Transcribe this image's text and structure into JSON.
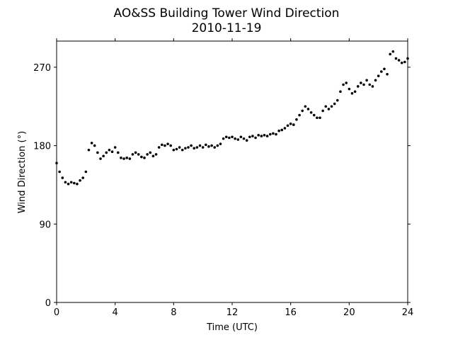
{
  "chart_data": {
    "type": "scatter",
    "title": "AO&SS Building Tower Wind Direction",
    "subtitle": "2010-11-19",
    "x_label": "Time (UTC)",
    "y_label": "Wind Direction (°)",
    "xlim": [
      0,
      24
    ],
    "ylim": [
      0,
      300
    ],
    "xticks": [
      0,
      4,
      8,
      12,
      16,
      20,
      24
    ],
    "yticks": [
      0,
      90,
      180,
      270
    ],
    "grid": false,
    "series": [
      {
        "color": "#000000",
        "x": [
          0,
          0.2,
          0.4,
          0.6,
          0.8,
          1.0,
          1.2,
          1.4,
          1.6,
          1.8,
          2.0,
          2.2,
          2.4,
          2.6,
          2.8,
          3.0,
          3.2,
          3.4,
          3.6,
          3.8,
          4.0,
          4.2,
          4.4,
          4.6,
          4.8,
          5.0,
          5.2,
          5.4,
          5.6,
          5.8,
          6.0,
          6.2,
          6.4,
          6.6,
          6.8,
          7.0,
          7.2,
          7.4,
          7.6,
          7.8,
          8.0,
          8.2,
          8.4,
          8.6,
          8.8,
          9.0,
          9.2,
          9.4,
          9.6,
          9.8,
          10.0,
          10.2,
          10.4,
          10.6,
          10.8,
          11.0,
          11.2,
          11.4,
          11.6,
          11.8,
          12.0,
          12.2,
          12.4,
          12.6,
          12.8,
          13.0,
          13.2,
          13.4,
          13.6,
          13.8,
          14.0,
          14.2,
          14.4,
          14.6,
          14.8,
          15.0,
          15.2,
          15.4,
          15.6,
          15.8,
          16.0,
          16.2,
          16.4,
          16.6,
          16.8,
          17.0,
          17.2,
          17.4,
          17.6,
          17.8,
          18.0,
          18.2,
          18.4,
          18.6,
          18.8,
          19.0,
          19.2,
          19.4,
          19.6,
          19.8,
          20.0,
          20.2,
          20.4,
          20.6,
          20.8,
          21.0,
          21.2,
          21.4,
          21.6,
          21.8,
          22.0,
          22.2,
          22.4,
          22.6,
          22.8,
          23.0,
          23.2,
          23.4,
          23.6,
          23.8,
          24.0
        ],
        "values": [
          160,
          150,
          143,
          138,
          136,
          138,
          137,
          136,
          140,
          143,
          150,
          175,
          183,
          180,
          172,
          165,
          168,
          172,
          175,
          173,
          178,
          172,
          166,
          165,
          166,
          165,
          170,
          172,
          170,
          167,
          166,
          170,
          172,
          168,
          170,
          178,
          181,
          180,
          182,
          180,
          175,
          176,
          178,
          175,
          177,
          178,
          180,
          177,
          178,
          180,
          178,
          181,
          179,
          180,
          178,
          180,
          182,
          188,
          190,
          189,
          190,
          188,
          187,
          190,
          188,
          186,
          190,
          191,
          189,
          192,
          191,
          192,
          191,
          193,
          194,
          193,
          197,
          198,
          200,
          203,
          205,
          204,
          210,
          215,
          220,
          225,
          222,
          218,
          215,
          212,
          212,
          220,
          225,
          222,
          225,
          228,
          232,
          242,
          250,
          252,
          245,
          240,
          242,
          248,
          252,
          250,
          255,
          250,
          248,
          255,
          260,
          265,
          268,
          262,
          285,
          288,
          280,
          278,
          275,
          276,
          280
        ]
      }
    ]
  }
}
